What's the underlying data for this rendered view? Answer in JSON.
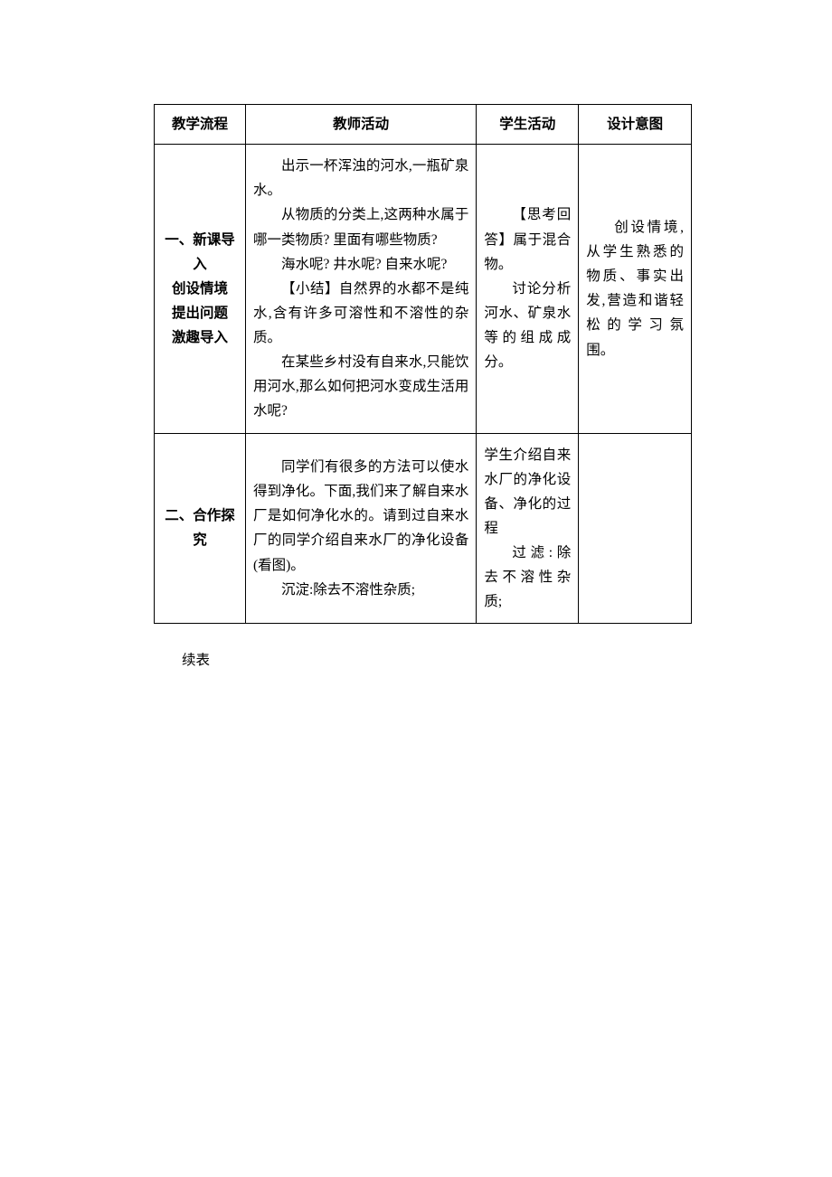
{
  "header": {
    "c1": "教学流程",
    "c2": "教师活动",
    "c3": "学生活动",
    "c4": "设计意图"
  },
  "row1": {
    "flow_l1": "一、新课导入",
    "flow_l2": "创设情境",
    "flow_l3": "提出问题",
    "flow_l4": "激趣导入",
    "teacher_p1": "出示一杯浑浊的河水,一瓶矿泉水。",
    "teacher_p2": "从物质的分类上,这两种水属于哪一类物质? 里面有哪些物质?",
    "teacher_p3": "海水呢? 井水呢? 自来水呢?",
    "teacher_p4": "【小结】自然界的水都不是纯水,含有许多可溶性和不溶性的杂质。",
    "teacher_p5": "在某些乡村没有自来水,只能饮用河水,那么如何把河水变成生活用水呢?",
    "student_p1": "【思考回答】属于混合物。",
    "student_p2": "讨论分析河水、矿泉水等的组成成分。",
    "intent": "创设情境,从学生熟悉的物质、事实出发,营造和谐轻松的学习氛围。"
  },
  "row2": {
    "flow": "二、合作探究",
    "teacher_p1": "同学们有很多的方法可以使水得到净化。下面,我们来了解自来水厂是如何净化水的。请到过自来水厂的同学介绍自来水厂的净化设备(看图)。",
    "teacher_p2": "沉淀:除去不溶性杂质;",
    "student_p1": "学生介绍自来水厂的净化设备、净化的过程",
    "student_p2": "过滤:除去不溶性杂质;"
  },
  "continued": "续表"
}
